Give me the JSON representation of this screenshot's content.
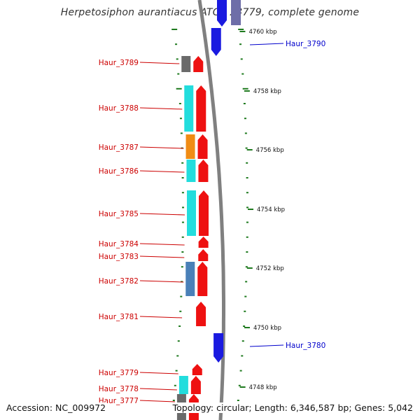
{
  "title": "Herpetosiphon aurantiacus ATCC 23779, complete genome",
  "accession_text": "Accession: NC_009972",
  "summary_text": "Topology: circular; Length: 6,346,587 bp; Genes: 5,042",
  "colors": {
    "backbone": "#808080",
    "tick": "#1e7a1e",
    "forward_gene": "#ee1111",
    "reverse_gene": "#1a1ae0",
    "reverse_gene_faded": "#6e6ea8",
    "label_forward": "#cc0000",
    "label_reverse": "#0000cc",
    "cog_cyan": "#22dddd",
    "cog_gray": "#6a6a6a",
    "cog_orange": "#f08c14",
    "cog_steelblue": "#4a80b8"
  },
  "scale": {
    "labels": [
      "4760 kbp",
      "4758 kbp",
      "4756 kbp",
      "4754 kbp",
      "4752 kbp",
      "4750 kbp",
      "4748 kbp"
    ]
  },
  "forward_genes": [
    {
      "label": "Haur_3789",
      "cog": "gray"
    },
    {
      "label": "Haur_3788",
      "cog": "cyan"
    },
    {
      "label": "Haur_3787",
      "cog": "orange"
    },
    {
      "label": "Haur_3786",
      "cog": "cyan"
    },
    {
      "label": "Haur_3785",
      "cog": "cyan"
    },
    {
      "label": "Haur_3784",
      "cog": ""
    },
    {
      "label": "Haur_3783",
      "cog": ""
    },
    {
      "label": "Haur_3782",
      "cog": "steelblue"
    },
    {
      "label": "Haur_3781",
      "cog": ""
    },
    {
      "label": "Haur_3779",
      "cog": ""
    },
    {
      "label": "Haur_3778",
      "cog": "cyan"
    },
    {
      "label": "Haur_3777",
      "cog": "gray"
    }
  ],
  "reverse_genes": [
    {
      "label": "Haur_3790"
    },
    {
      "label": "Haur_3780"
    }
  ]
}
